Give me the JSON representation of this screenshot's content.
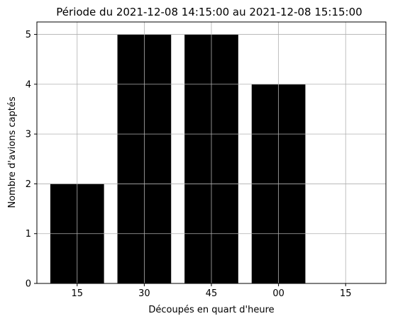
{
  "chart_data": {
    "type": "bar",
    "title": "Période du 2021-12-08 14:15:00 au 2021-12-08 15:15:00",
    "xlabel": "Découpés en quart d'heure",
    "ylabel": "Nombre d'avions captés",
    "categories": [
      "15",
      "30",
      "45",
      "00",
      "15"
    ],
    "values": [
      2,
      5,
      5,
      4,
      0
    ],
    "ylim": [
      0,
      5.25
    ],
    "yticks": [
      "0",
      "1",
      "2",
      "3",
      "4",
      "5"
    ],
    "grid": true,
    "bar_color": "#000000",
    "grid_color": "#b0b0b0"
  }
}
